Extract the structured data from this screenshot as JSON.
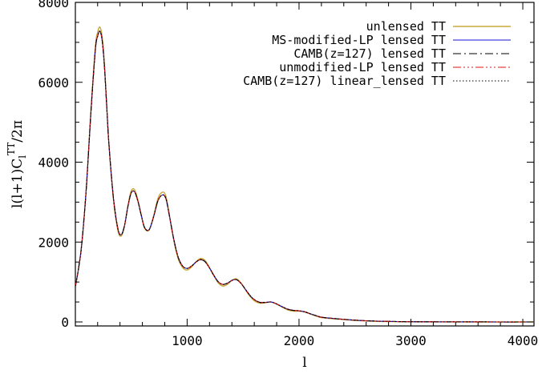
{
  "chart_data": {
    "type": "line",
    "xlabel": "l",
    "ylabel": "l(l+1)C_l^TT/2π",
    "ylabel_parts": {
      "prefix": "l(l+1)C",
      "sub": "l",
      "sup": "TT",
      "suffix": "/2π"
    },
    "xlim": [
      1,
      4100
    ],
    "ylim": [
      -100,
      8000
    ],
    "xticks": [
      1000,
      2000,
      3000,
      4000
    ],
    "xtick_labels": [
      "1000",
      "2000",
      "3000",
      "4000"
    ],
    "yticks": [
      0,
      2000,
      4000,
      6000,
      8000
    ],
    "ytick_labels": [
      "0",
      "2000",
      "4000",
      "6000",
      "8000"
    ],
    "grid": false,
    "legend_position": "top-right",
    "x": [
      2,
      30,
      60,
      100,
      140,
      180,
      200,
      220,
      240,
      260,
      280,
      300,
      340,
      380,
      410,
      440,
      470,
      500,
      530,
      560,
      590,
      620,
      660,
      700,
      740,
      780,
      810,
      840,
      880,
      920,
      960,
      1000,
      1040,
      1080,
      1120,
      1160,
      1200,
      1240,
      1280,
      1320,
      1360,
      1400,
      1440,
      1480,
      1520,
      1560,
      1600,
      1650,
      1700,
      1750,
      1800,
      1850,
      1900,
      1950,
      2000,
      2050,
      2100,
      2150,
      2200,
      2300,
      2400,
      2500,
      2600,
      2700,
      2800,
      2900,
      3000,
      3200,
      3400,
      3600,
      3800,
      4000,
      4100
    ],
    "series": [
      {
        "name": "unlensed TT",
        "color": "#c8a838",
        "dash": "",
        "values": [
          900,
          1350,
          2000,
          3400,
          5300,
          6900,
          7250,
          7380,
          7150,
          6500,
          5500,
          4500,
          3100,
          2300,
          2150,
          2400,
          2900,
          3280,
          3310,
          3050,
          2680,
          2350,
          2300,
          2650,
          3100,
          3250,
          3150,
          2700,
          2050,
          1580,
          1360,
          1300,
          1380,
          1510,
          1590,
          1540,
          1360,
          1150,
          970,
          900,
          940,
          1040,
          1080,
          980,
          810,
          650,
          530,
          470,
          480,
          500,
          450,
          370,
          300,
          270,
          270,
          250,
          200,
          150,
          110,
          80,
          60,
          40,
          25,
          15,
          10,
          5,
          3,
          2,
          1,
          0,
          0,
          0,
          0
        ]
      },
      {
        "name": "MS-modified-LP lensed TT",
        "color": "#1414dc",
        "dash": "",
        "values": [
          900,
          1350,
          2000,
          3400,
          5250,
          6820,
          7150,
          7280,
          7060,
          6430,
          5460,
          4490,
          3140,
          2350,
          2180,
          2410,
          2880,
          3230,
          3260,
          3020,
          2670,
          2360,
          2310,
          2630,
          3040,
          3180,
          3090,
          2680,
          2080,
          1620,
          1400,
          1340,
          1400,
          1500,
          1560,
          1510,
          1350,
          1160,
          1000,
          940,
          970,
          1040,
          1060,
          970,
          820,
          670,
          560,
          490,
          490,
          500,
          450,
          380,
          320,
          290,
          280,
          255,
          205,
          160,
          120,
          90,
          65,
          45,
          30,
          20,
          14,
          9,
          6,
          3,
          2,
          1,
          0,
          0,
          0
        ]
      },
      {
        "name": "CAMB(z=127) lensed TT",
        "color": "#000000",
        "dash": "10,4,2,4",
        "values": [
          900,
          1350,
          2000,
          3400,
          5250,
          6820,
          7150,
          7280,
          7060,
          6430,
          5460,
          4490,
          3140,
          2350,
          2180,
          2410,
          2880,
          3230,
          3260,
          3020,
          2670,
          2360,
          2310,
          2630,
          3040,
          3180,
          3090,
          2680,
          2080,
          1620,
          1400,
          1340,
          1400,
          1500,
          1560,
          1510,
          1350,
          1160,
          1000,
          940,
          970,
          1040,
          1060,
          970,
          820,
          670,
          560,
          490,
          490,
          500,
          450,
          380,
          320,
          290,
          280,
          255,
          205,
          160,
          120,
          90,
          65,
          45,
          30,
          20,
          14,
          9,
          6,
          3,
          2,
          1,
          0,
          0,
          0
        ]
      },
      {
        "name": "unmodified-LP lensed TT",
        "color": "#dc1414",
        "dash": "10,3,2,3,2,3,2,3",
        "values": [
          900,
          1350,
          2000,
          3400,
          5250,
          6820,
          7150,
          7280,
          7060,
          6430,
          5460,
          4490,
          3140,
          2350,
          2180,
          2410,
          2880,
          3230,
          3260,
          3020,
          2670,
          2360,
          2310,
          2630,
          3040,
          3180,
          3090,
          2680,
          2080,
          1620,
          1400,
          1340,
          1400,
          1500,
          1560,
          1510,
          1350,
          1160,
          1000,
          940,
          970,
          1040,
          1060,
          970,
          820,
          670,
          560,
          490,
          490,
          500,
          450,
          380,
          320,
          290,
          280,
          255,
          205,
          160,
          120,
          90,
          65,
          45,
          30,
          20,
          14,
          9,
          6,
          3,
          2,
          1,
          0,
          0,
          0
        ]
      },
      {
        "name": "CAMB(z=127) linear_lensed TT",
        "color": "#000000",
        "dash": "1.5,2.5",
        "values": [
          900,
          1350,
          2000,
          3400,
          5250,
          6820,
          7150,
          7280,
          7060,
          6430,
          5460,
          4490,
          3140,
          2350,
          2180,
          2410,
          2880,
          3230,
          3260,
          3020,
          2670,
          2360,
          2310,
          2630,
          3040,
          3180,
          3090,
          2680,
          2080,
          1620,
          1400,
          1340,
          1400,
          1500,
          1560,
          1510,
          1350,
          1160,
          1000,
          940,
          970,
          1040,
          1060,
          970,
          820,
          670,
          560,
          490,
          490,
          500,
          450,
          380,
          320,
          290,
          280,
          255,
          205,
          160,
          120,
          90,
          65,
          45,
          30,
          20,
          14,
          9,
          6,
          3,
          2,
          1,
          0,
          0,
          0
        ]
      }
    ]
  }
}
